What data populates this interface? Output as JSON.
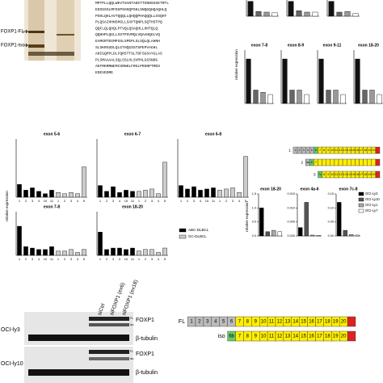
{
  "gel": {
    "labels": [
      "FOXP1-FL",
      "FOXP1-iso"
    ]
  },
  "sequence": {
    "lines": [
      "MPTPLLQQLWEVTSANTAEETTGNNSSSETRTL",
      "EDSSSSLMFDGPSHSQPSKLSNQGQHQAQHLQ",
      "PSHLQHLAVTQQQLLQHQQPHAQQQLLSSQHT",
      "PLQSAIHHNSMSLLSAPTQNPLSQTHSTPQ",
      "QQFLQLQHQLPTVQLQSAQHLLHHTQLQ",
      "QQHHPLQGLLSSTPSVMQLVQAAHQGLVQ",
      "EAMGRTEGMPSSLSPEPLSLSQLQLAHNH",
      "SLSKRSSDLQLGTHQGSSTSPEPVAGHL",
      "ARIGQPPLDLFQRSTTSLTDFSGSAYGLAS",
      "PLSMAAAALSQLSSLHLSVPHLGSSNDG",
      "AEFRKRMWEMCSRNKLFRGLPRSNPTMDS",
      "EDEVEDME"
    ]
  },
  "screen": {
    "ylabel": "relative expression",
    "colors": [
      "#111111",
      "#666666",
      "#999999",
      "#ffffff"
    ],
    "top_charts": [
      {
        "ylim": [
          0,
          1.2
        ],
        "values": [
          1.1,
          0.35,
          0.3,
          0.25
        ]
      },
      {
        "ylim": [
          0,
          1.2
        ],
        "values": [
          1.1,
          0.4,
          0.3,
          0.3
        ]
      },
      {
        "ylim": [
          0,
          1.2
        ],
        "values": [
          1.1,
          0.3,
          0.35,
          0.2
        ]
      }
    ],
    "charts": [
      {
        "title": "exon 7-8",
        "ylim": [
          0,
          1.2
        ],
        "values": [
          1.0,
          0.3,
          0.25,
          0.2
        ]
      },
      {
        "title": "exon 8-9",
        "ylim": [
          0,
          1.2
        ],
        "values": [
          1.0,
          0.3,
          0.3,
          0.2
        ]
      },
      {
        "title": "exon 9-11",
        "ylim": [
          0,
          1.2
        ],
        "values": [
          1.0,
          0.3,
          0.3,
          0.2
        ]
      },
      {
        "title": "exon 18-20",
        "ylim": [
          0,
          1.2
        ],
        "values": [
          1.0,
          0.3,
          0.3,
          0.2
        ]
      }
    ]
  },
  "patients": {
    "ylabel": "relative expression",
    "abc_categories": [
      "1",
      "2",
      "3",
      "4",
      "10",
      "11"
    ],
    "gc_categories": [
      "1",
      "2",
      "3",
      "4",
      "5"
    ],
    "series": [
      {
        "name": "ABC-DLBCL",
        "color": "#000000"
      },
      {
        "name": "GC-DLBCL",
        "color": "#cccccc"
      }
    ],
    "charts": [
      {
        "title": "exon 5-6",
        "ylim": [
          0,
          5
        ],
        "abc": [
          1.1,
          0.6,
          0.8,
          0.5,
          0.3,
          0.6
        ],
        "gc": [
          0.4,
          0.3,
          0.4,
          0.3,
          2.6
        ]
      },
      {
        "title": "exon 6-7",
        "ylim": [
          0,
          5
        ],
        "abc": [
          1.0,
          0.5,
          0.9,
          0.4,
          0.6,
          0.5
        ],
        "gc": [
          0.5,
          0.6,
          0.7,
          0.3,
          3.0
        ]
      },
      {
        "title": "exon 6-8",
        "ylim": [
          0,
          5
        ],
        "abc": [
          1.0,
          0.7,
          0.9,
          0.6,
          0.7,
          0.8
        ],
        "gc": [
          0.6,
          0.7,
          0.8,
          0.4,
          3.5
        ]
      },
      {
        "title": "exon 7-8",
        "ylim": [
          0,
          3
        ],
        "abc": [
          2.0,
          0.6,
          0.5,
          0.4,
          0.4,
          0.6
        ],
        "gc": [
          0.3,
          0.3,
          0.4,
          0.2,
          0.4
        ]
      },
      {
        "title": "exon 18-20",
        "ylim": [
          0,
          3
        ],
        "abc": [
          1.6,
          0.4,
          0.5,
          0.5,
          0.4,
          0.5
        ],
        "gc": [
          0.3,
          0.4,
          0.4,
          0.2,
          0.5
        ]
      }
    ]
  },
  "cell_lines": {
    "ylabel": "relative expression",
    "series": [
      {
        "name": "OCI-Ly3",
        "color": "#000000"
      },
      {
        "name": "OCI-Ly10",
        "color": "#555555"
      },
      {
        "name": "OCI-Ly1",
        "color": "#aaaaaa"
      },
      {
        "name": "OCI-Ly7",
        "color": "#ffffff"
      }
    ],
    "charts": [
      {
        "title": "exon 18-20",
        "ylim": [
          0,
          1.5
        ],
        "yticks": [
          {
            "value": 0,
            "label": "0.0"
          },
          {
            "value": 0.5,
            "label": "0.5"
          },
          {
            "value": 1,
            "label": "1.0"
          },
          {
            "value": 1.5,
            "label": "1.5"
          }
        ],
        "values": [
          1.0,
          0.15,
          0.2,
          0.15
        ]
      },
      {
        "title": "exon 4a-6",
        "ylim": [
          0,
          0.015
        ],
        "yticks": [
          {
            "value": 0,
            "label": "0.000"
          },
          {
            "value": 0.005,
            "label": "0.005"
          },
          {
            "value": 0.01,
            "label": "0.010"
          },
          {
            "value": 0.015,
            "label": "0.015"
          }
        ],
        "values": [
          0.003,
          0.012,
          0.0003,
          0.0002
        ]
      },
      {
        "title": "exon 7c-8",
        "ylim": [
          0,
          0.15
        ],
        "yticks": [
          {
            "value": 0,
            "label": "0.00"
          },
          {
            "value": 0.05,
            "label": "0.05"
          },
          {
            "value": 0.1,
            "label": "0.10"
          },
          {
            "value": 0.15,
            "label": "0.15"
          }
        ],
        "values": [
          0.12,
          0.02,
          0.005,
          0.003
        ]
      }
    ]
  },
  "transcripts": {
    "rows": [
      {
        "label": "1",
        "exons": [
          "1",
          "2",
          "3",
          "4",
          "5",
          "6",
          "7",
          "8",
          "9",
          "10",
          "11",
          "12",
          "13",
          "14",
          "15",
          "16",
          "17",
          "18",
          "19",
          "20",
          null
        ],
        "colors": [
          "#bbbbbb",
          "#bbbbbb",
          "#bbbbbb",
          "#bbbbbb",
          "#bbbbbb",
          "#66cc66",
          "#ffee00",
          "#ffee00",
          "#ffee00",
          "#ffee00",
          "#ffee00",
          "#ffee00",
          "#ffee00",
          "#ffee00",
          "#ffee00",
          "#ffee00",
          "#ffee00",
          "#ffee00",
          "#ffee00",
          "#ffee00",
          "#dd2222"
        ]
      },
      {
        "label": "2",
        "exons": [
          "4a",
          "6",
          "7",
          null,
          null,
          null,
          null,
          null,
          null,
          null,
          null,
          null,
          null,
          null,
          null,
          null,
          null,
          null
        ],
        "colors": [
          "#bbbbbb",
          "#66cc66",
          "#ffee00",
          "#ffee00",
          "#ffee00",
          "#ffee00",
          "#ffee00",
          "#ffee00",
          "#ffee00",
          "#ffee00",
          "#ffee00",
          "#ffee00",
          "#ffee00",
          "#ffee00",
          "#ffee00",
          "#ffee00",
          "#ffee00",
          "#dd2222"
        ]
      },
      {
        "label": "3",
        "exons": [
          "7c",
          "8",
          "9",
          "10",
          "11",
          "12",
          "13",
          "14",
          "15",
          "16",
          "17",
          "18",
          "19",
          "20",
          null
        ],
        "colors": [
          "#66cc66",
          "#ffee00",
          "#ffee00",
          "#ffee00",
          "#ffee00",
          "#ffee00",
          "#ffee00",
          "#ffee00",
          "#ffee00",
          "#ffee00",
          "#ffee00",
          "#ffee00",
          "#ffee00",
          "#ffee00",
          "#dd2222"
        ]
      }
    ]
  },
  "blot": {
    "lanes": [
      "siCtrl",
      "siFOXP1 (ex6)",
      "siFOXP1 (ex18)"
    ],
    "cells": [
      "OCI-ly3",
      "OCI-ly10"
    ],
    "proteins": [
      "FOXP1",
      "β-tubulin",
      "FOXP1",
      "β-tubulin"
    ],
    "bands": [
      "FL",
      "iso"
    ]
  },
  "isoforms": {
    "rows": [
      {
        "label": "FL",
        "exons": [
          "1",
          "2",
          "3",
          "4",
          "5",
          "6",
          "7",
          "8",
          "9",
          "10",
          "11",
          "12",
          "13",
          "14",
          "15",
          "16",
          "17",
          "18",
          "19",
          "20",
          null
        ],
        "colors": [
          "#bbbbbb",
          "#bbbbbb",
          "#bbbbbb",
          "#bbbbbb",
          "#bbbbbb",
          "#bbbbbb",
          "#ffee00",
          "#ffee00",
          "#ffee00",
          "#ffee00",
          "#ffee00",
          "#ffee00",
          "#ffee00",
          "#ffee00",
          "#ffee00",
          "#ffee00",
          "#ffee00",
          "#ffee00",
          "#ffee00",
          "#ffee00",
          "#dd2222"
        ]
      },
      {
        "label": "iso",
        "exons": [
          "6b",
          "7",
          "8",
          "9",
          "10",
          "11",
          "12",
          "13",
          "14",
          "15",
          "16",
          "17",
          "18",
          "19",
          "20",
          null
        ],
        "colors": [
          "#66cc66",
          "#ffee00",
          "#ffee00",
          "#ffee00",
          "#ffee00",
          "#ffee00",
          "#ffee00",
          "#ffee00",
          "#ffee00",
          "#ffee00",
          "#ffee00",
          "#ffee00",
          "#ffee00",
          "#ffee00",
          "#ffee00",
          "#dd2222"
        ]
      }
    ]
  }
}
